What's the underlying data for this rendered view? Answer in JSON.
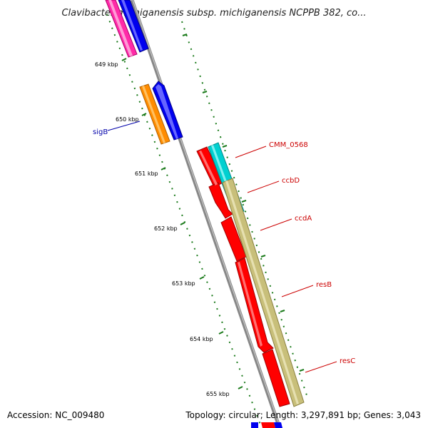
{
  "title": "Clavibacter michiganensis subsp. michiganensis NCPPB 382, co...",
  "footer": {
    "accession": "Accession: NC_009480",
    "summary": "Topology: circular; Length: 3,297,891 bp; Genes: 3,043"
  },
  "ticks": [
    "649 kbp",
    "650 kbp",
    "651 kbp",
    "652 kbp",
    "653 kbp",
    "654 kbp",
    "655 kbp"
  ],
  "gene_labels": [
    {
      "name": "sigB",
      "color": "#0000aa"
    },
    {
      "name": "CMM_0568",
      "color": "#cc0000"
    },
    {
      "name": "ccbD",
      "color": "#cc0000"
    },
    {
      "name": "ccdA",
      "color": "#cc0000"
    },
    {
      "name": "resB",
      "color": "#cc0000"
    },
    {
      "name": "resC",
      "color": "#cc0000"
    }
  ],
  "colors": {
    "backbone": "#888888",
    "tick": "#1a7a1a",
    "pink": "#ff2aa8",
    "blue": "#0000ee",
    "orange": "#ff8c00",
    "red": "#ff0000",
    "cyan": "#00d0d0",
    "khaki": "#c8bf7a"
  }
}
